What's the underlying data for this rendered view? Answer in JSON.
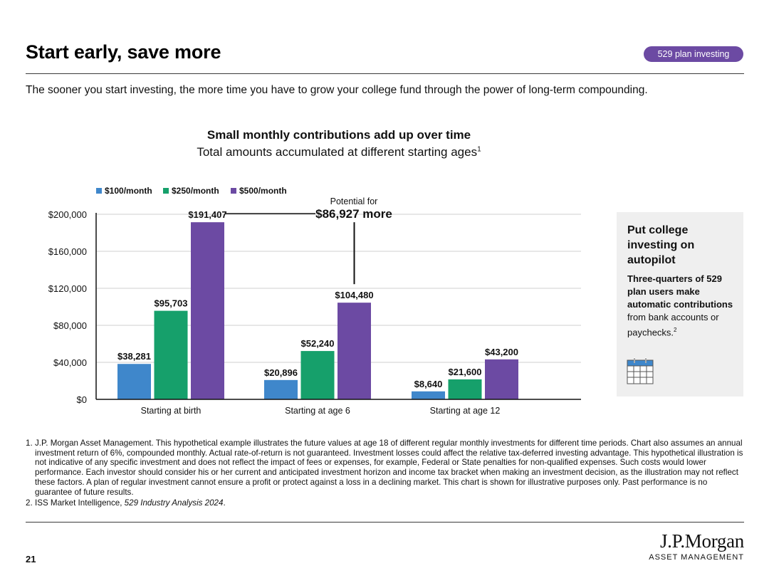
{
  "header": {
    "title": "Start early, save more",
    "badge": "529 plan investing",
    "subtitle": "The sooner you start investing, the more time you have to grow your college fund through the power of long-term compounding."
  },
  "colors": {
    "series_100": "#3f87cb",
    "series_250": "#16a06b",
    "series_500": "#6c4aa3",
    "badge_bg": "#6c4aa3",
    "axis": "#111111",
    "gridline": "#cfcfcf"
  },
  "chart_data": {
    "type": "bar",
    "title": "Small monthly contributions add up over time",
    "subtitle": "Total amounts accumulated at different starting ages",
    "subtitle_footnote": "1",
    "categories": [
      "Starting at birth",
      "Starting at age 6",
      "Starting at age 12"
    ],
    "series": [
      {
        "name": "$100/month",
        "values": [
          38281,
          20896,
          8640
        ],
        "labels": [
          "$38,281",
          "$20,896",
          "$8,640"
        ]
      },
      {
        "name": "$250/month",
        "values": [
          95703,
          52240,
          21600
        ],
        "labels": [
          "$95,703",
          "$52,240",
          "$21,600"
        ]
      },
      {
        "name": "$500/month",
        "values": [
          191407,
          104480,
          43200
        ],
        "labels": [
          "$191,407",
          "$104,480",
          "$43,200"
        ]
      }
    ],
    "yticks": [
      0,
      40000,
      80000,
      120000,
      160000,
      200000
    ],
    "ytick_labels": [
      "$0",
      "$40,000",
      "$80,000",
      "$120,000",
      "$160,000",
      "$200,000"
    ],
    "ylim": [
      0,
      200000
    ],
    "grid": true,
    "legend": "top-left",
    "annotation": {
      "prefix": "Potential for",
      "value": "$86,927 more",
      "from_series": 2,
      "from_category": 0,
      "to_series": 2,
      "to_category": 1
    }
  },
  "callout": {
    "title": "Put college investing on autopilot",
    "body_bold": "Three-quarters of 529 plan users make automatic contributions",
    "body_rest": " from bank accounts or paychecks.",
    "body_footnote": "2",
    "icon": "calendar-icon"
  },
  "footnotes": {
    "n1": "1.",
    "t1": "J.P. Morgan Asset Management. This hypothetical example illustrates the future values at age 18 of different regular monthly investments for different time periods. Chart also assumes an annual investment return of 6%, compounded monthly. Actual rate-of-return is not guaranteed. Investment losses could affect the relative tax-deferred investing advantage. This hypothetical illustration is not indicative of any specific investment and does not reflect the impact of fees or expenses, for example, Federal or State penalties for non-qualified expenses. Such costs would lower performance. Each investor should consider his or her current and anticipated investment horizon and income tax bracket when making an investment decision, as the illustration may not reflect these factors. A plan of regular investment cannot ensure a profit or protect against a loss in a declining market. This chart is shown for illustrative purposes only. Past performance is no guarantee of future results.",
    "n2": "2.",
    "t2_plain": "ISS Market Intelligence, ",
    "t2_italic": "529 Industry Analysis 2024",
    "t2_end": "."
  },
  "footer": {
    "page_number": "21",
    "logo_main": "J.P.Morgan",
    "logo_sub": "ASSET MANAGEMENT"
  }
}
